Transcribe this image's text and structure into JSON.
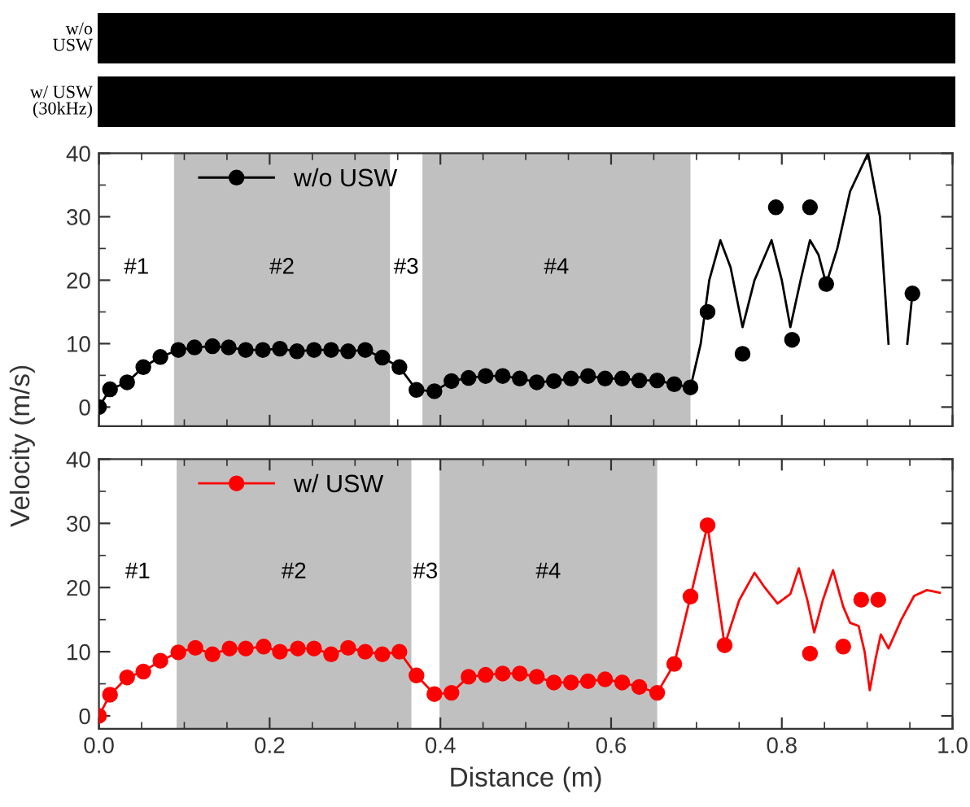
{
  "chart_data": [
    {
      "type": "line",
      "annotations": [
        "w/o\nUSW",
        "w/ USW\n(30kHz)",
        "#1",
        "#3"
      ],
      "series": [
        {
          "name": "w/o USW",
          "color": "#000000",
          "marker": "circle",
          "x": [
            0,
            0.013,
            0.033,
            0.052,
            0.072,
            0.093,
            0.112,
            0.133,
            0.152,
            0.172,
            0.192,
            0.212,
            0.232,
            0.252,
            0.272,
            0.292,
            0.312,
            0.332,
            0.352,
            0.372,
            0.393,
            0.413,
            0.433,
            0.453,
            0.473,
            0.493,
            0.513,
            0.533,
            0.553,
            0.573,
            0.593,
            0.613,
            0.633,
            0.654,
            0.674,
            0.693
          ],
          "values": [
            0,
            2.8,
            3.9,
            6.3,
            7.9,
            9.0,
            9.4,
            9.6,
            9.4,
            9.0,
            9.0,
            9.2,
            8.8,
            9.0,
            9.0,
            8.8,
            9.0,
            7.8,
            6.3,
            2.7,
            2.5,
            4.1,
            4.6,
            4.9,
            4.9,
            4.5,
            3.9,
            4.1,
            4.5,
            4.9,
            4.5,
            4.5,
            4.2,
            4.2,
            3.6,
            3.1
          ]
        },
        {
          "color": "#000000",
          "marker": "none",
          "x": [
            0.693,
            0.705,
            0.715,
            0.728,
            0.74,
            0.754,
            0.768,
            0.788,
            0.8,
            0.81,
            0.822,
            0.833,
            0.843,
            0.852,
            0.865,
            0.88,
            0.901,
            0.915,
            0.925,
            0.932,
            0.942,
            0.947,
            0.953
          ],
          "values": [
            3.1,
            10,
            20,
            26.3,
            22,
            12.6,
            20,
            26.3,
            20,
            12.6,
            20,
            26.3,
            24,
            19.4,
            25,
            34,
            40,
            30,
            10,
            null,
            null,
            10,
            17.9
          ]
        },
        {
          "type": "scatter",
          "color": "#000000",
          "marker": "circle",
          "x": [
            0.713,
            0.754,
            0.793,
            0.812,
            0.833,
            0.852,
            0.953
          ],
          "values": [
            15.0,
            8.4,
            31.5,
            10.6,
            31.5,
            19.4,
            17.9
          ]
        }
      ],
      "bands": [
        {
          "axis": "x",
          "from": 0.088,
          "to": 0.341,
          "color": "#c0c0c0",
          "label": "#2"
        },
        {
          "axis": "x",
          "from": 0.379,
          "to": 0.693,
          "color": "#c0c0c0",
          "label": "#4"
        }
      ],
      "xlim": [
        0,
        1.0
      ],
      "ylim": [
        -3,
        40
      ],
      "xticks": [
        0,
        0.2,
        0.4,
        0.6,
        0.8,
        1.0
      ],
      "yticks": [
        0,
        10,
        20,
        30,
        40
      ],
      "tick_labels": "y",
      "legend": "top left",
      "grid": false,
      "line_style": "solid"
    },
    {
      "type": "line",
      "xlabel": "Distance (m)",
      "ylabel": "Velocity (m/s)",
      "annotations": [
        "#1",
        "#3"
      ],
      "series": [
        {
          "name": "w/ USW",
          "color": "#ff0000",
          "marker": "circle",
          "x": [
            0,
            0.013,
            0.033,
            0.052,
            0.072,
            0.093,
            0.113,
            0.133,
            0.153,
            0.172,
            0.193,
            0.212,
            0.233,
            0.252,
            0.272,
            0.292,
            0.312,
            0.332,
            0.352,
            0.372,
            0.393,
            0.413,
            0.433,
            0.453,
            0.473,
            0.493,
            0.513,
            0.533,
            0.553,
            0.573,
            0.593,
            0.613,
            0.633,
            0.654,
            0.674,
            0.693,
            0.713,
            0.733
          ],
          "values": [
            0,
            3.3,
            6.0,
            6.9,
            8.6,
            9.9,
            10.6,
            9.6,
            10.5,
            10.5,
            10.8,
            10.0,
            10.5,
            10.5,
            9.6,
            10.6,
            10.0,
            9.6,
            10.0,
            6.3,
            3.4,
            3.6,
            6.1,
            6.4,
            6.6,
            6.6,
            6.1,
            5.2,
            5.2,
            5.4,
            5.7,
            5.2,
            4.5,
            3.6,
            8.1,
            18.6,
            29.7,
            11.0
          ]
        },
        {
          "color": "#ff0000",
          "marker": "none",
          "x": [
            0.733,
            0.75,
            0.768,
            0.78,
            0.795,
            0.81,
            0.82,
            0.83,
            0.838,
            0.848,
            0.86,
            0.872,
            0.88,
            0.89,
            0.897,
            0.903,
            0.91,
            0.916,
            0.925,
            0.94,
            0.955,
            0.97,
            0.985
          ],
          "values": [
            11.0,
            18,
            22.3,
            20,
            17.5,
            19,
            23,
            18,
            13,
            18,
            22.7,
            17,
            14.5,
            14,
            10,
            4,
            9,
            12.7,
            10.5,
            15,
            18.7,
            19.6,
            19.2
          ]
        },
        {
          "type": "scatter",
          "color": "#ff0000",
          "marker": "circle",
          "x": [
            0.833,
            0.872,
            0.893,
            0.913
          ],
          "values": [
            9.7,
            10.8,
            18.1,
            18.1
          ]
        }
      ],
      "bands": [
        {
          "axis": "x",
          "from": 0.091,
          "to": 0.366,
          "color": "#c0c0c0",
          "label": "#2"
        },
        {
          "axis": "x",
          "from": 0.399,
          "to": 0.654,
          "color": "#c0c0c0",
          "label": "#4"
        }
      ],
      "xlim": [
        0,
        1.0
      ],
      "ylim": [
        -2,
        40
      ],
      "xticks": [
        {
          "value": 0,
          "label": "0.0"
        },
        {
          "value": 0.2,
          "label": "0.2"
        },
        {
          "value": 0.4,
          "label": "0.4"
        },
        {
          "value": 0.6,
          "label": "0.6"
        },
        {
          "value": 0.8,
          "label": "0.8"
        },
        {
          "value": 1.0,
          "label": "1.0"
        }
      ],
      "yticks": [
        0,
        10,
        20,
        30,
        40
      ],
      "legend": "top left",
      "grid": false,
      "line_style": "solid"
    }
  ]
}
